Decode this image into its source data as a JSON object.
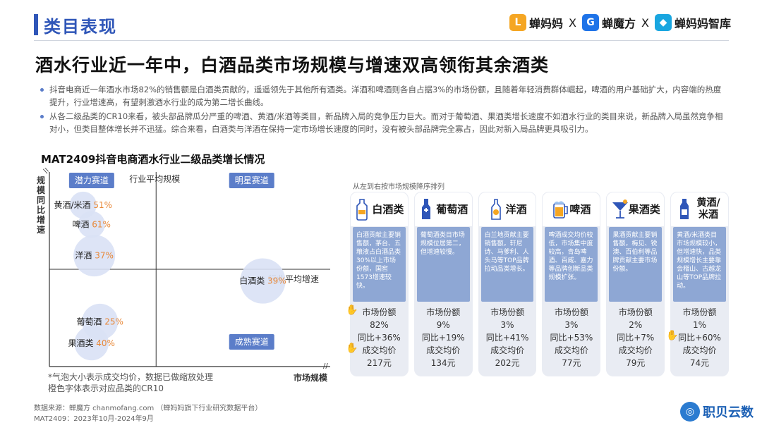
{
  "header": {
    "section": "类目表现",
    "brands": [
      "蝉妈妈",
      "蝉魔方",
      "蝉妈妈智库"
    ],
    "separator": "X"
  },
  "headline": "酒水行业近一年中，白酒品类市场规模与增速双高领衔其余酒类",
  "bullets": [
    "抖音电商近一年酒水市场82%的销售额是白酒类贡献的，遥遥领先于其他所有酒类。洋酒和啤酒则各自占据3%的市场份额，且随着年轻消费群体崛起，啤酒的用户基础扩大，内容端的热度提升，行业增速高，有望刺激酒水行业的成为第二增长曲线。",
    "从各二级品类的CR10来看，被头部品牌瓜分严重的啤酒、黄酒/米酒等类目，新品牌入局的竞争压力巨大。而对于葡萄酒、果酒类增长速度不如酒水行业的类目来说，新品牌入局虽然竞争相对小，但类目整体增长并不迅猛。综合来看，白酒类与洋酒在保持一定市场增长速度的同时，没有被头部品牌完全寡占，因此对新入局品牌更具吸引力。"
  ],
  "chart_data": {
    "type": "scatter",
    "title": "MAT2409抖音电商酒水行业二级品类增长情况",
    "xlabel": "市场规模",
    "ylabel": "规模同比增速",
    "vline_label": "行业平均规模",
    "hline_label": "行业平均增速",
    "quadrants": {
      "top_left": "潜力赛道",
      "top_right": "明星赛道",
      "bottom_right": "成熟赛道"
    },
    "points": [
      {
        "name": "黄酒/米酒",
        "cr10": "51%",
        "x": 1.2,
        "y": 8.3,
        "size": 0.35
      },
      {
        "name": "啤酒",
        "cr10": "61%",
        "x": 1.5,
        "y": 7.3,
        "size": 0.35
      },
      {
        "name": "洋酒",
        "cr10": "37%",
        "x": 1.6,
        "y": 5.7,
        "size": 0.75
      },
      {
        "name": "白酒类",
        "cr10": "39%",
        "x": 7.6,
        "y": 4.4,
        "size": 0.85
      },
      {
        "name": "葡萄酒",
        "cr10": "25%",
        "x": 1.8,
        "y": 2.3,
        "size": 0.6
      },
      {
        "name": "果酒类",
        "cr10": "40%",
        "x": 1.5,
        "y": 1.2,
        "size": 0.55
      }
    ],
    "note_lines": [
      "*气泡大小表示成交均价，数据已做缩放处理",
      "橙色字体表示对应品类的CR10"
    ]
  },
  "cards_note": "从左到右按市场规模降序排列",
  "cards": [
    {
      "name": "白酒类",
      "icon": "baijiu-bottle-icon",
      "desc": "白酒贡献主要销售额，茅台、五粮液占白酒品类30%以上市场份额，国窖1573增速较快。",
      "share_label": "市场份额",
      "share": "82%",
      "yoy_label": "同比",
      "yoy": "+36%",
      "price_label": "成交均价",
      "price": "217元",
      "hands": [
        true,
        false,
        true
      ]
    },
    {
      "name": "葡萄酒",
      "icon": "wine-bottle-icon",
      "desc": "葡萄酒类目市场规模位居第二，但增速较慢。",
      "share_label": "市场份额",
      "share": "9%",
      "yoy_label": "同比",
      "yoy": "+19%",
      "price_label": "成交均价",
      "price": "134元",
      "hands": [
        false,
        false,
        false
      ]
    },
    {
      "name": "洋酒",
      "icon": "whisky-glass-icon",
      "desc": "白兰地贡献主要销售额，轩尼诗、马爹利、人头马等TOP品牌拉动品类增长。",
      "share_label": "市场份额",
      "share": "3%",
      "yoy_label": "同比",
      "yoy": "+41%",
      "price_label": "成交均价",
      "price": "202元",
      "hands": [
        false,
        false,
        false
      ]
    },
    {
      "name": "啤酒",
      "icon": "beer-mug-icon",
      "desc": "啤酒成交均价较低，市场集中度较高，青岛啤酒、百威、嘉力等品牌创新品类规模扩张。",
      "share_label": "市场份额",
      "share": "3%",
      "yoy_label": "同比",
      "yoy": "+53%",
      "price_label": "成交均价",
      "price": "77元",
      "hands": [
        false,
        false,
        false
      ]
    },
    {
      "name": "果酒类",
      "icon": "cocktail-glass-icon",
      "desc": "果酒贡献主要销售额，梅见、锐澳、百伯利等品牌贡献主要市场份额。",
      "share_label": "市场份额",
      "share": "2%",
      "yoy_label": "同比",
      "yoy": "+7%",
      "price_label": "成交均价",
      "price": "79元",
      "hands": [
        false,
        false,
        false
      ]
    },
    {
      "name": "黄酒/米酒",
      "icon": "rice-wine-bottle-icon",
      "desc": "黄酒/米酒类目市场规模较小，但增速快，品类规模增长主要靠会稽山、古越龙山等TOP品牌拉动。",
      "share_label": "市场份额",
      "share": "1%",
      "yoy_label": "同比",
      "yoy": "+60%",
      "price_label": "成交均价",
      "price": "74元",
      "hands": [
        false,
        true,
        false
      ]
    }
  ],
  "footer": {
    "source": "数据来源：蝉魔方 chanmofang.com （蝉妈妈旗下行业研究数据平台）",
    "period": "MAT2409：2023年10月-2024年9月"
  },
  "corner_brand": "职贝云数",
  "colors": {
    "accent": "#2f56b8",
    "bubble": "#d9e1f5",
    "cr10_orange": "#e8893a",
    "card_desc": "#8ea7d4",
    "card_bg": "#e9ecf3",
    "quadrant_label_bg": "#5b7dc9"
  }
}
